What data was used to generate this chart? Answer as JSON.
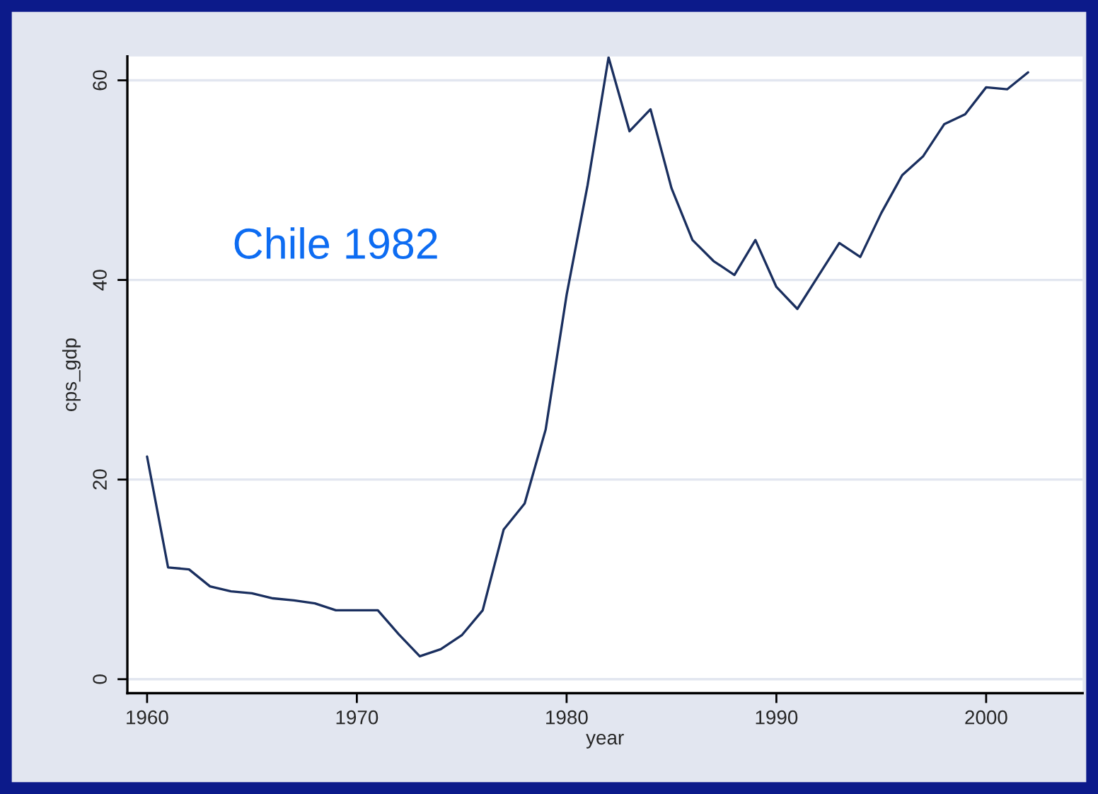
{
  "chart_data": {
    "type": "line",
    "xlabel": "year",
    "ylabel": "cps_gdp",
    "annotations": [
      "Chile 1982"
    ],
    "x": [
      1960,
      1961,
      1962,
      1963,
      1964,
      1965,
      1966,
      1967,
      1968,
      1969,
      1970,
      1971,
      1972,
      1973,
      1974,
      1975,
      1976,
      1977,
      1978,
      1979,
      1980,
      1981,
      1982,
      1983,
      1984,
      1985,
      1986,
      1987,
      1988,
      1989,
      1990,
      1991,
      1992,
      1993,
      1994,
      1995,
      1996,
      1997,
      1998,
      1999,
      2000,
      2001,
      2002
    ],
    "series": [
      {
        "color": "#1a2f5f",
        "values": [
          22.3,
          11.2,
          11.0,
          9.3,
          8.8,
          8.6,
          8.1,
          7.9,
          7.6,
          6.9,
          6.9,
          6.9,
          4.5,
          2.3,
          3.0,
          4.4,
          6.9,
          15.0,
          17.6,
          25.0,
          38.5,
          49.5,
          62.3,
          54.9,
          57.1,
          49.2,
          44.0,
          41.9,
          40.5,
          44.0,
          39.3,
          37.1,
          40.4,
          43.7,
          42.3,
          46.7,
          50.5,
          52.4,
          55.6,
          56.6,
          59.3,
          59.1,
          60.8
        ]
      }
    ],
    "xlim": [
      1959.06,
      2004.6
    ],
    "ylim": [
      -1.4,
      62.4
    ],
    "xticks": [
      1960,
      1970,
      1980,
      1990,
      2000
    ],
    "yticks": [
      0,
      20,
      40,
      60
    ],
    "grid": "y",
    "marker": "none",
    "line_style": "solid"
  }
}
